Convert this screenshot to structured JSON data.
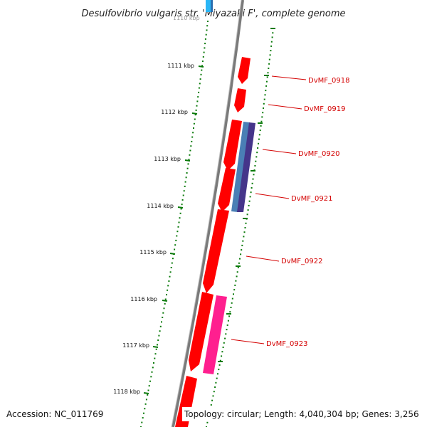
{
  "title": "Desulfovibrio vulgaris str. 'Miyazaki F', complete genome",
  "footer": {
    "accession": "Accession: NC_011769",
    "summary": "Topology: circular; Length: 4,040,304 bp; Genes: 3,256"
  },
  "ruler": {
    "faded_top_label": "1110 kbp",
    "kbp_labels": [
      "1111 kbp",
      "1112 kbp",
      "1113 kbp",
      "1114 kbp",
      "1115 kbp",
      "1116 kbp",
      "1117 kbp",
      "1118 kbp"
    ]
  },
  "genes": [
    {
      "name": "DvMF_0918",
      "strand": "reverse",
      "track": "main"
    },
    {
      "name": "DvMF_0919",
      "strand": "reverse",
      "track": "main"
    },
    {
      "name": "DvMF_0920",
      "strand": "reverse",
      "track": "main"
    },
    {
      "name": "DvMF_0921",
      "strand": "reverse",
      "track": "main"
    },
    {
      "name": "DvMF_0922",
      "strand": "reverse",
      "track": "main"
    },
    {
      "name": "DvMF_0923",
      "strand": "reverse",
      "track": "main"
    }
  ],
  "colors": {
    "backbone": "#7a7a7a",
    "gene_red": "#ff0000",
    "gene_pink": "#ff1f8f",
    "gene_blue": "#4a7fb5",
    "gene_purple": "#45358a",
    "gene_cyan": "#29b6f6",
    "tick_green": "#0a7a0a",
    "label_red": "#d40000"
  }
}
